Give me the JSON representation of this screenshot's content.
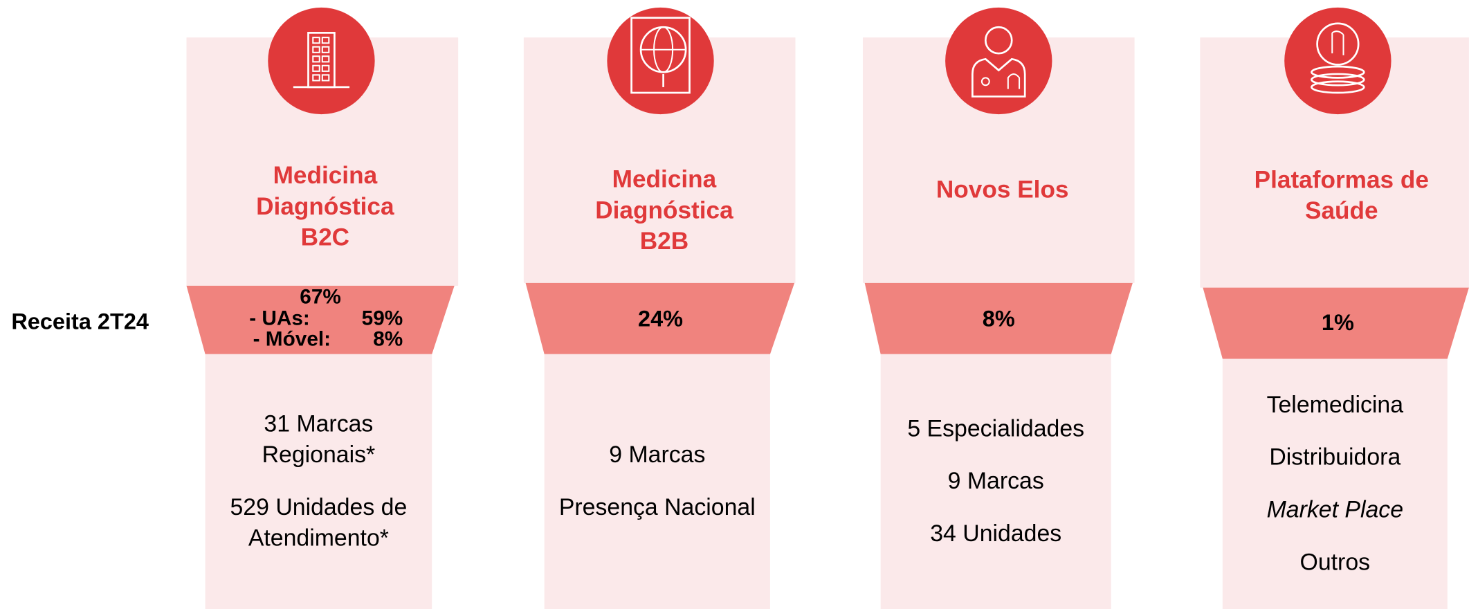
{
  "row_label": "Receita 2T24",
  "columns": [
    {
      "title": [
        "Medicina",
        "Diagnóstica",
        "B2C"
      ],
      "revenue": "67%",
      "breakdown": [
        {
          "label": "- UAs:",
          "value": "59%"
        },
        {
          "label": "- Móvel:",
          "value": "8%"
        }
      ],
      "details": [
        {
          "lines": [
            "31 Marcas",
            "Regionais*"
          ]
        },
        {
          "lines": [
            "529 Unidades de",
            "Atendimento*"
          ]
        }
      ]
    },
    {
      "title": [
        "Medicina",
        "Diagnóstica",
        "B2B"
      ],
      "revenue": "24%",
      "details": [
        {
          "lines": [
            "9 Marcas"
          ]
        },
        {
          "lines": [
            "Presença Nacional"
          ]
        }
      ]
    },
    {
      "title": [
        "Novos Elos"
      ],
      "revenue": "8%",
      "details": [
        {
          "lines": [
            "5 Especialidades"
          ]
        },
        {
          "lines": [
            "9 Marcas"
          ]
        },
        {
          "lines": [
            "34 Unidades"
          ]
        }
      ]
    },
    {
      "title": [
        "Plataformas de",
        "Saúde"
      ],
      "revenue": "1%",
      "details": [
        {
          "lines": [
            "Telemedicina"
          ]
        },
        {
          "lines": [
            "Distribuidora"
          ]
        },
        {
          "lines": [
            "Market Place"
          ],
          "italic": true
        },
        {
          "lines": [
            "Outros"
          ]
        }
      ]
    }
  ]
}
